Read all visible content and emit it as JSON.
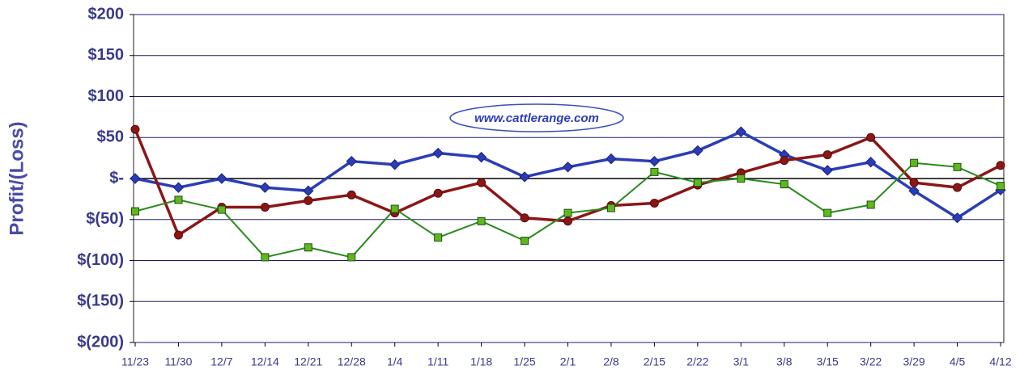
{
  "chart_data": {
    "type": "line",
    "y_label": "Profit/(Loss)",
    "annotation": "www.cattlerange.com",
    "categories": [
      "11/23",
      "11/30",
      "12/7",
      "12/14",
      "12/21",
      "12/28",
      "1/4",
      "1/11",
      "1/18",
      "1/25",
      "2/1",
      "2/8",
      "2/15",
      "2/22",
      "3/1",
      "3/8",
      "3/15",
      "3/22",
      "3/29",
      "4/5",
      "4/12"
    ],
    "series": [
      {
        "color": "#2b3db5",
        "marker": "diamond",
        "values": [
          0,
          -11,
          0,
          -11,
          -15,
          21,
          17,
          31,
          26,
          2,
          14,
          24,
          21,
          34,
          57,
          29,
          10,
          20,
          -15,
          -48,
          -14
        ]
      },
      {
        "color": "#8b1616",
        "marker": "circle",
        "values": [
          60,
          -69,
          -35,
          -35,
          -27,
          -20,
          -42,
          -18,
          -5,
          -48,
          -52,
          -33,
          -30,
          -8,
          7,
          22,
          29,
          50,
          -5,
          -11,
          16
        ]
      },
      {
        "color": "#2a8a1e",
        "marker": "square",
        "values": [
          -40,
          -26,
          -38,
          -96,
          -84,
          -96,
          -37,
          -72,
          -52,
          -76,
          -42,
          -36,
          8,
          -5,
          0,
          -7,
          -42,
          -32,
          19,
          14,
          -9
        ]
      }
    ],
    "ylim": [
      -200,
      200
    ],
    "yticks": [
      {
        "value": -200,
        "label": "$(200)"
      },
      {
        "value": -150,
        "label": "$(150)"
      },
      {
        "value": -100,
        "label": "$(100)"
      },
      {
        "value": -50,
        "label": "$(50)"
      },
      {
        "value": 0,
        "label": "$-"
      },
      {
        "value": 50,
        "label": "$50"
      },
      {
        "value": 100,
        "label": "$100"
      },
      {
        "value": 150,
        "label": "$150"
      },
      {
        "value": 200,
        "label": "$200"
      }
    ],
    "grid": true
  }
}
